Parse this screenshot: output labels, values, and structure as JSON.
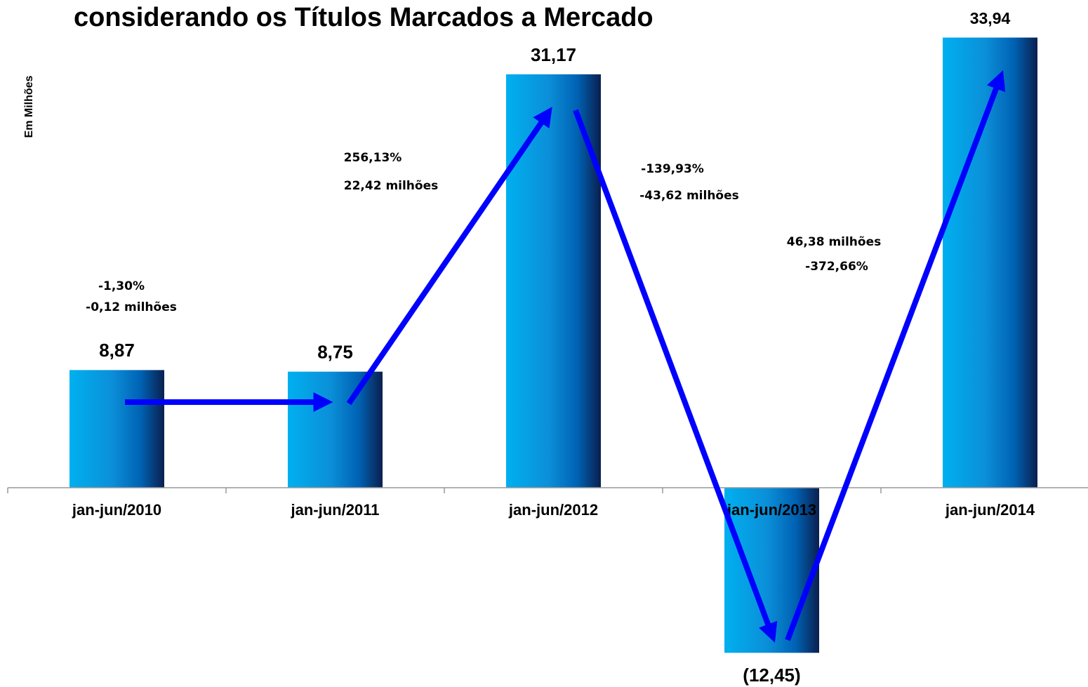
{
  "chart_data": {
    "type": "bar",
    "title": "considerando os Títulos Marcados a Mercado",
    "y_label": "Em Milhões",
    "categories": [
      "jan-jun/2010",
      "jan-jun/2011",
      "jan-jun/2012",
      "jan-jun/2013",
      "jan-jun/2014"
    ],
    "values": [
      8.87,
      8.75,
      31.17,
      -12.45,
      33.94
    ],
    "value_labels": [
      "8,87",
      "8,75",
      "31,17",
      "(12,45)",
      "33,94"
    ],
    "ylim": [
      -15,
      35
    ],
    "annotations": [
      [
        "-1,30%",
        "-0,12 milhões"
      ],
      [
        "256,13%",
        "22,42 milhões"
      ],
      [
        "-139,93%",
        "-43,62 milhões"
      ],
      [
        "46,38 milhões",
        "-372,66%"
      ]
    ]
  }
}
